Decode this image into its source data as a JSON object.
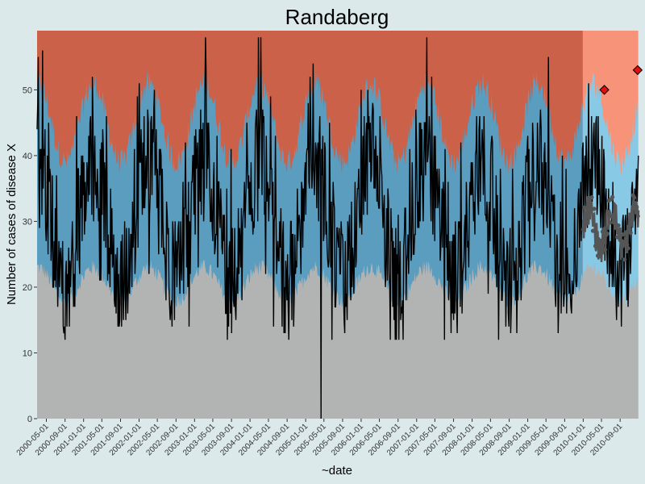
{
  "chart_data": {
    "type": "line",
    "title": "Randaberg",
    "xlabel": "~date",
    "ylabel": "Number of cases of disease X",
    "ylim": [
      0,
      59
    ],
    "y_ticks": [
      0,
      10,
      20,
      30,
      40,
      50
    ],
    "x_start": "2000-03-01",
    "x_end": "2010-12-31",
    "x_tick_labels": [
      "2000-05-01",
      "2000-09-01",
      "2001-01-01",
      "2001-05-01",
      "2001-09-01",
      "2002-01-01",
      "2002-05-01",
      "2002-09-01",
      "2003-01-01",
      "2003-05-01",
      "2003-09-01",
      "2004-01-01",
      "2004-05-01",
      "2004-09-01",
      "2005-01-01",
      "2005-05-01",
      "2005-09-01",
      "2006-01-01",
      "2006-05-01",
      "2006-09-01",
      "2007-01-01",
      "2007-05-01",
      "2007-09-01",
      "2008-01-01",
      "2008-05-01",
      "2008-09-01",
      "2009-01-01",
      "2009-05-01",
      "2009-09-01",
      "2010-01-01",
      "2010-05-01",
      "2010-09-01"
    ],
    "forecast_start": "2010-01-01",
    "bands": [
      {
        "name": "normal",
        "color_history": "#b2b4b3",
        "color_forecast": "#b2b4b3"
      },
      {
        "name": "expected range",
        "color_history": "#5b9dbf",
        "color_forecast": "#88c9e6"
      },
      {
        "name": "high",
        "color_history": "#cb6149",
        "color_forecast": "#f79379"
      }
    ],
    "band_levels": {
      "lower_center": 20.5,
      "lower_amp": 2.5,
      "upper_center": 45,
      "upper_amp": 6
    },
    "series": [
      {
        "name": "observed cases",
        "color": "#000000",
        "dip_value": 0,
        "dip_date": "2005-04-12"
      },
      {
        "name": "forecast estimate",
        "color": "#555555"
      }
    ],
    "alerts": [
      {
        "date": "2010-05-20",
        "value": 50,
        "color": "#e01010"
      },
      {
        "date": "2010-12-25",
        "value": 53,
        "color": "#e01010"
      }
    ]
  }
}
